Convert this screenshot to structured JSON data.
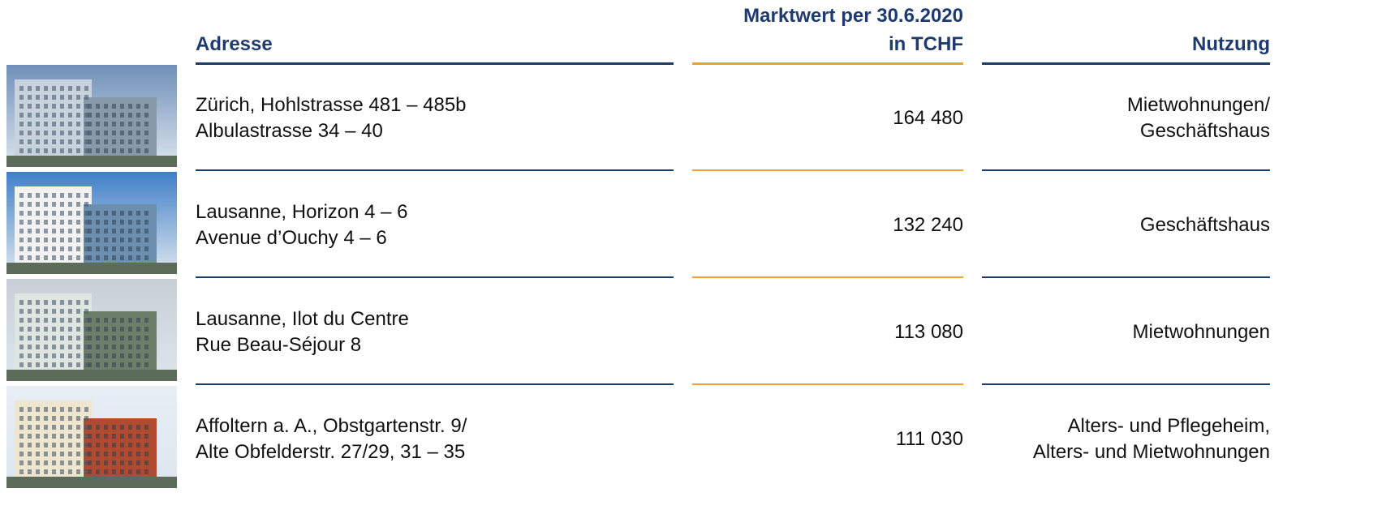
{
  "header": {
    "address": "Adresse",
    "value": [
      "Marktwert per 30.6.2020",
      "in TCHF"
    ],
    "usage": "Nutzung"
  },
  "rows": [
    {
      "address": [
        "Zürich, Hohlstrasse 481 – 485b",
        "Albulastrasse 34 – 40"
      ],
      "value": "164 480",
      "usage": [
        "Mietwohnungen/",
        "Geschäftshaus"
      ]
    },
    {
      "address": [
        "Lausanne, Horizon 4 – 6",
        "Avenue d’Ouchy 4 – 6"
      ],
      "value": "132 240",
      "usage": [
        "Geschäftshaus"
      ]
    },
    {
      "address": [
        "Lausanne, Ilot du Centre",
        "Rue Beau-Séjour 8"
      ],
      "value": "113 080",
      "usage": [
        "Mietwohnungen"
      ]
    },
    {
      "address": [
        "Affoltern a. A., Obstgartenstr. 9/",
        "Alte Obfelderstr. 27/29, 31 – 35"
      ],
      "value": "111 030",
      "usage": [
        "Alters- und Pflegeheim,",
        "Alters- und Mietwohnungen"
      ]
    }
  ]
}
